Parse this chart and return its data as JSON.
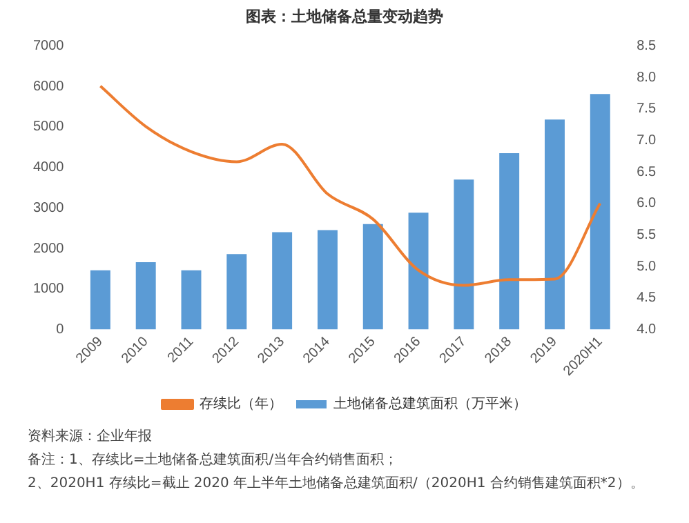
{
  "chart_data": {
    "type": "bar",
    "title": "图表：土地储备总量变动趋势",
    "categories": [
      "2009",
      "2010",
      "2011",
      "2012",
      "2013",
      "2014",
      "2015",
      "2016",
      "2017",
      "2018",
      "2019",
      "2020H1"
    ],
    "series": [
      {
        "name": "土地储备总建筑面积（万平米）",
        "color": "#5b9bd5",
        "values": [
          1460,
          1660,
          1460,
          1860,
          2400,
          2450,
          2600,
          2880,
          3700,
          4350,
          5180,
          5810
        ]
      },
      {
        "name": "存续比（年）",
        "type": "line",
        "axis": "y2",
        "color": "#ed7d31",
        "values": [
          7.86,
          7.22,
          6.82,
          6.66,
          6.94,
          6.15,
          5.75,
          4.94,
          4.7,
          4.79,
          4.8,
          6.0
        ]
      }
    ],
    "ylim": [
      0,
      7000
    ],
    "yticks": [
      0,
      1000,
      2000,
      3000,
      4000,
      5000,
      6000,
      7000
    ],
    "y2lim": [
      4,
      8.5
    ],
    "y2ticks": [
      {
        "value": 4,
        "label": "4.0"
      },
      {
        "value": 4.5,
        "label": "4.5"
      },
      {
        "value": 5,
        "label": "5.0"
      },
      {
        "value": 5.5,
        "label": "5.5"
      },
      {
        "value": 6,
        "label": "6.0"
      },
      {
        "value": 6.5,
        "label": "6.5"
      },
      {
        "value": 7,
        "label": "7.0"
      },
      {
        "value": 7.5,
        "label": "7.5"
      },
      {
        "value": 8,
        "label": "8.0"
      },
      {
        "value": 8.5,
        "label": "8.5"
      }
    ],
    "grid": false,
    "legend": "bottom",
    "marker": "none",
    "annotations": [
      "资料来源：企业年报",
      "备注：1、存续比=土地储备总建筑面积/当年合约销售面积；",
      "2、2020H1 存续比=截止 2020 年上半年土地储备总建筑面积/（2020H1 合约销售建筑面积*2）。"
    ]
  }
}
